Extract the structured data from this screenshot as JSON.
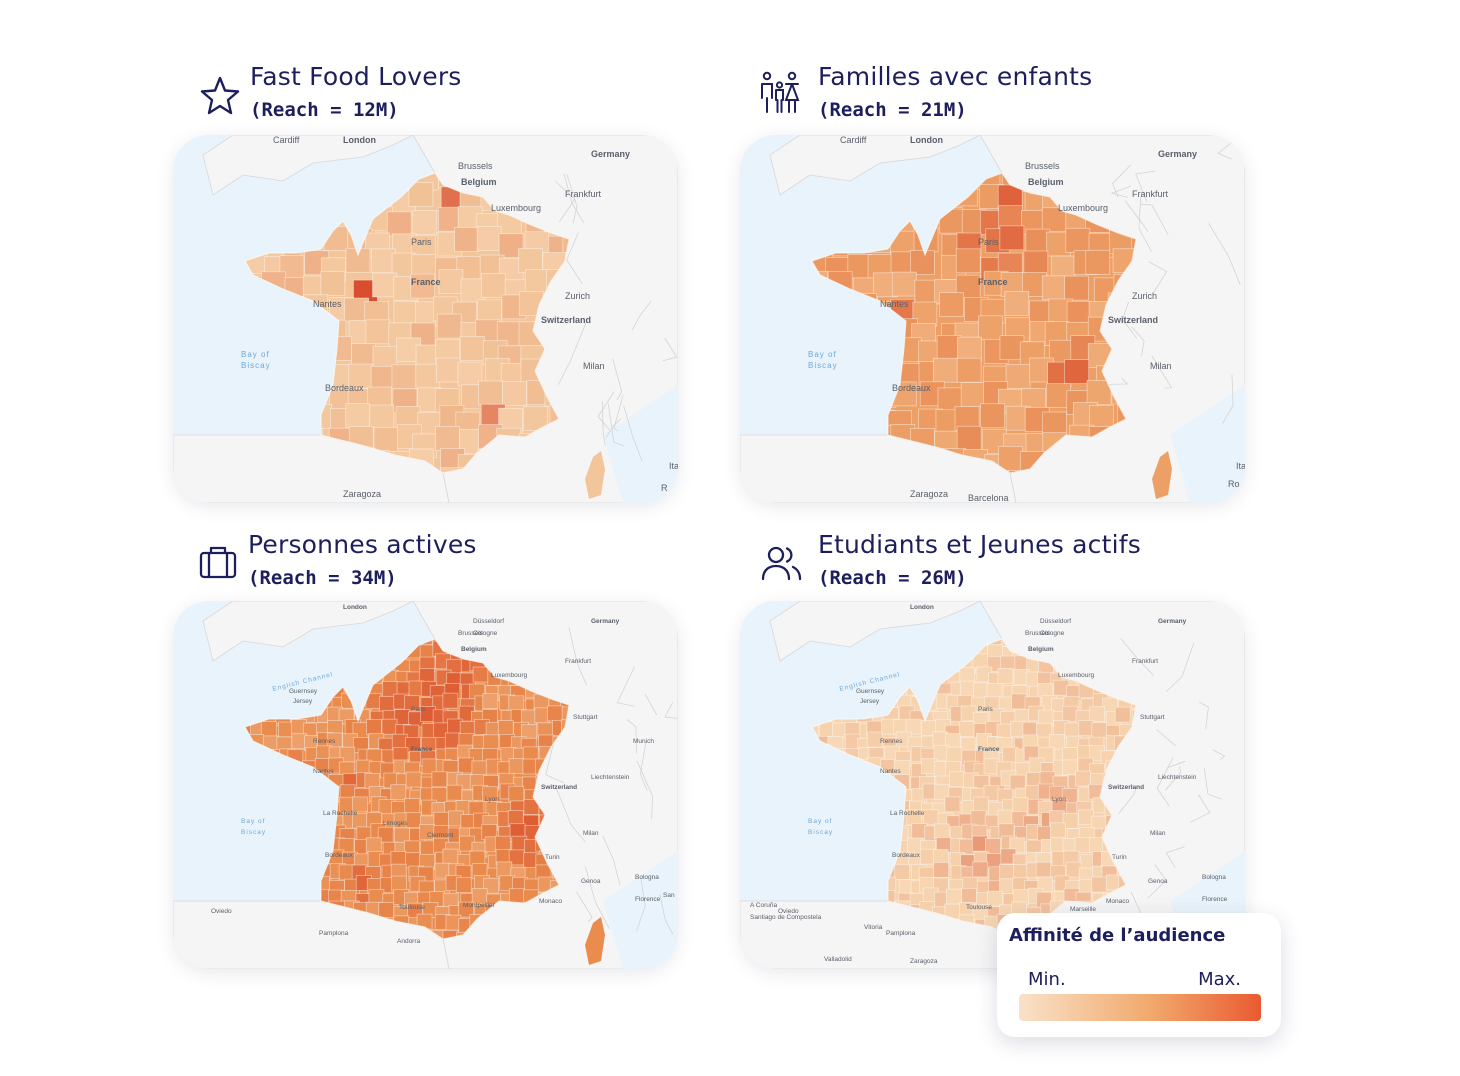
{
  "panels": [
    {
      "title": "Fast Food Lovers",
      "reach": "(Reach = 12M)",
      "icon": "star-icon",
      "base_color": "#f3c59a",
      "labels": [
        "Cardiff",
        "London",
        "Brussels",
        "Belgium",
        "Germany",
        "Frankfurt",
        "Luxembourg",
        "Paris",
        "France",
        "Nantes",
        "Zurich",
        "Switzerland",
        "Milan",
        "Bordeaux",
        "Zaragoza",
        "Ita",
        "R"
      ],
      "sea_labels": [
        "Bay of",
        "Biscay"
      ]
    },
    {
      "title": "Familles avec enfants",
      "reach": "(Reach = 21M)",
      "icon": "family-icon",
      "base_color": "#eda066",
      "labels": [
        "Cardiff",
        "London",
        "Brussels",
        "Belgium",
        "Germany",
        "Frankfurt",
        "Luxembourg",
        "Paris",
        "France",
        "Nantes",
        "Zurich",
        "Switzerland",
        "Milan",
        "Bordeaux",
        "Zaragoza",
        "Barcelona",
        "Ita",
        "Ro"
      ],
      "sea_labels": [
        "Bay of",
        "Biscay"
      ]
    },
    {
      "title": "Personnes actives",
      "reach": "(Reach = 34M)",
      "icon": "briefcase-icon",
      "base_color": "#e98c4e",
      "labels": [
        "London",
        "Brussels",
        "Cologne",
        "Düsseldorf",
        "Belgium",
        "Germany",
        "Frankfurt",
        "Luxembourg",
        "Stuttgart",
        "Munich",
        "Paris",
        "France",
        "Liechtenstein",
        "Switzerland",
        "Milan",
        "Turin",
        "Genoa",
        "Bologna",
        "Florence",
        "San",
        "Monaco",
        "Toulouse",
        "Andorra",
        "Pamplona",
        "Oviedo",
        "Guernsey",
        "Jersey",
        "Lyon",
        "Rennes",
        "Nantes",
        "La Rochelle",
        "Bordeaux",
        "Limoges",
        "Clermont",
        "Montpellier"
      ],
      "sea_labels": [
        "Bay of",
        "Biscay",
        "English Channel"
      ]
    },
    {
      "title": "Etudiants et Jeunes actifs",
      "reach": "(Reach = 26M)",
      "icon": "users-icon",
      "base_color": "#f6d3ae",
      "labels": [
        "London",
        "Brussels",
        "Cologne",
        "Düsseldorf",
        "Belgium",
        "Germany",
        "Frankfurt",
        "Luxembourg",
        "Stuttgart",
        "Paris",
        "France",
        "Liechtenstein",
        "Switzerland",
        "Milan",
        "Turin",
        "Genoa",
        "Bologna",
        "Florence",
        "Monaco",
        "Marseille",
        "Toulouse",
        "Pamplona",
        "Oviedo",
        "Vitoria",
        "A Coruña",
        "Santiago de Compostela",
        "Valladolid",
        "Zaragoza",
        "Guernsey",
        "Jersey",
        "Lyon",
        "Rennes",
        "Nantes",
        "La Rochelle",
        "Bordeaux"
      ],
      "sea_labels": [
        "Bay of",
        "Biscay",
        "English Channel"
      ]
    }
  ],
  "legend": {
    "title": "Affinité de l’audience",
    "min_label": "Min.",
    "max_label": "Max.",
    "color_min": "#f8e2c8",
    "color_mid": "#f1a86c",
    "color_max": "#ea5a32"
  }
}
